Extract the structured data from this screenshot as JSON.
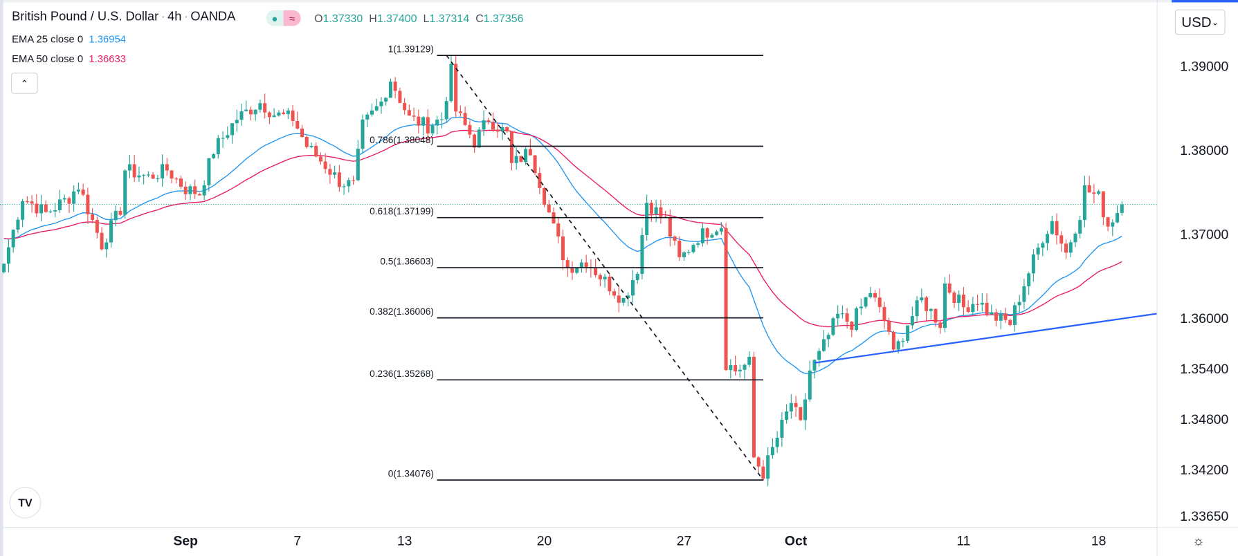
{
  "header": {
    "symbol": "British Pound / U.S. Dollar",
    "interval": "4h",
    "exchange": "OANDA",
    "separator": "·",
    "status_open_icon": "●",
    "status_delay_icon": "≈",
    "ohlc": {
      "o_label": "O",
      "o": "1.37330",
      "h_label": "H",
      "h": "1.37400",
      "l_label": "L",
      "l": "1.37314",
      "c_label": "C",
      "c": "1.37356"
    }
  },
  "indicators": [
    {
      "label": "EMA 25 close 0",
      "value": "1.36954",
      "color": "#2196f3"
    },
    {
      "label": "EMA 50 close 0",
      "value": "1.36633",
      "color": "#e91e63"
    }
  ],
  "controls": {
    "collapse_icon": "⌃",
    "currency": "USD",
    "currency_caret": "⌄",
    "logo_text": "TV",
    "settings_icon": "☼"
  },
  "colors": {
    "up": "#26a69a",
    "down": "#ef5350",
    "ema25": "#2196f3",
    "ema50": "#e91e63",
    "trendline": "#2962ff",
    "grid_axis": "#e0e3eb"
  },
  "chart_data": {
    "type": "candlestick",
    "title": "British Pound / U.S. Dollar · 4h · OANDA",
    "ylim": [
      1.3365,
      1.396
    ],
    "y_ticks": [
      "1.39000",
      "1.38000",
      "1.37000",
      "1.36000",
      "1.35400",
      "1.34800",
      "1.34200",
      "1.33650"
    ],
    "y_tick_values": [
      1.39,
      1.38,
      1.37,
      1.36,
      1.354,
      1.348,
      1.342,
      1.3365
    ],
    "x_ticks": [
      {
        "label": "Sep",
        "i": 39
      },
      {
        "label": "7",
        "i": 63
      },
      {
        "label": "13",
        "i": 86
      },
      {
        "label": "20",
        "i": 116
      },
      {
        "label": "27",
        "i": 146
      },
      {
        "label": "Oct",
        "i": 170
      },
      {
        "label": "11",
        "i": 206
      },
      {
        "label": "18",
        "i": 235
      }
    ],
    "close_waypoints": [
      [
        0,
        1.3665
      ],
      [
        4,
        1.3744
      ],
      [
        9,
        1.3725
      ],
      [
        14,
        1.3744
      ],
      [
        16,
        1.3758
      ],
      [
        21,
        1.3688
      ],
      [
        25,
        1.373
      ],
      [
        26,
        1.3777
      ],
      [
        31,
        1.3768
      ],
      [
        35,
        1.3777
      ],
      [
        39,
        1.3754
      ],
      [
        42,
        1.3749
      ],
      [
        45,
        1.38
      ],
      [
        50,
        1.3838
      ],
      [
        55,
        1.3857
      ],
      [
        58,
        1.3843
      ],
      [
        62,
        1.3838
      ],
      [
        65,
        1.3805
      ],
      [
        69,
        1.3782
      ],
      [
        72,
        1.3763
      ],
      [
        75,
        1.3758
      ],
      [
        77,
        1.3829
      ],
      [
        81,
        1.3857
      ],
      [
        83,
        1.3885
      ],
      [
        87,
        1.3838
      ],
      [
        91,
        1.3829
      ],
      [
        94,
        1.3838
      ],
      [
        96,
        1.3894
      ],
      [
        97,
        1.3847
      ],
      [
        101,
        1.381
      ],
      [
        104,
        1.3838
      ],
      [
        108,
        1.3819
      ],
      [
        109,
        1.3782
      ],
      [
        113,
        1.38
      ],
      [
        116,
        1.3744
      ],
      [
        118,
        1.3707
      ],
      [
        121,
        1.366
      ],
      [
        125,
        1.3669
      ],
      [
        128,
        1.365
      ],
      [
        133,
        1.3622
      ],
      [
        136,
        1.366
      ],
      [
        138,
        1.3739
      ],
      [
        142,
        1.3716
      ],
      [
        145,
        1.3669
      ],
      [
        149,
        1.3697
      ],
      [
        152,
        1.3707
      ],
      [
        154,
        1.3711
      ],
      [
        155,
        1.3547
      ],
      [
        157,
        1.3538
      ],
      [
        160,
        1.3547
      ],
      [
        161,
        1.3434
      ],
      [
        163,
        1.3416
      ],
      [
        165,
        1.3444
      ],
      [
        169,
        1.35
      ],
      [
        171,
        1.3472
      ],
      [
        173,
        1.3538
      ],
      [
        175,
        1.3556
      ],
      [
        179,
        1.3603
      ],
      [
        182,
        1.3594
      ],
      [
        186,
        1.3632
      ],
      [
        190,
        1.3585
      ],
      [
        191,
        1.3556
      ],
      [
        194,
        1.3594
      ],
      [
        197,
        1.3622
      ],
      [
        201,
        1.3594
      ],
      [
        202,
        1.3641
      ],
      [
        206,
        1.3613
      ],
      [
        209,
        1.3622
      ],
      [
        212,
        1.3603
      ],
      [
        216,
        1.3594
      ],
      [
        219,
        1.3641
      ],
      [
        223,
        1.3697
      ],
      [
        225,
        1.3716
      ],
      [
        228,
        1.3678
      ],
      [
        231,
        1.3725
      ],
      [
        232,
        1.3754
      ],
      [
        235,
        1.3744
      ],
      [
        237,
        1.3711
      ],
      [
        240,
        1.37356
      ]
    ],
    "last_price": 1.37356,
    "ema_periods": [
      25,
      50
    ],
    "fibonacci": {
      "start": {
        "i": 95,
        "price": 1.39129
      },
      "end": {
        "i": 163,
        "price": 1.34076
      },
      "levels": [
        {
          "ratio": 1,
          "price": 1.39129,
          "label": "1(1.39129)"
        },
        {
          "ratio": 0.786,
          "price": 1.38048,
          "label": "0.786(1.38048)"
        },
        {
          "ratio": 0.618,
          "price": 1.37199,
          "label": "0.618(1.37199)"
        },
        {
          "ratio": 0.5,
          "price": 1.36603,
          "label": "0.5(1.36603)"
        },
        {
          "ratio": 0.382,
          "price": 1.36006,
          "label": "0.382(1.36006)"
        },
        {
          "ratio": 0.236,
          "price": 1.35268,
          "label": "0.236(1.35268)"
        },
        {
          "ratio": 0,
          "price": 1.34076,
          "label": "0(1.34076)"
        }
      ]
    },
    "trendline": {
      "start": {
        "i": 174,
        "price": 1.3547
      },
      "end": {
        "i": 248,
        "price": 1.3606
      }
    }
  }
}
